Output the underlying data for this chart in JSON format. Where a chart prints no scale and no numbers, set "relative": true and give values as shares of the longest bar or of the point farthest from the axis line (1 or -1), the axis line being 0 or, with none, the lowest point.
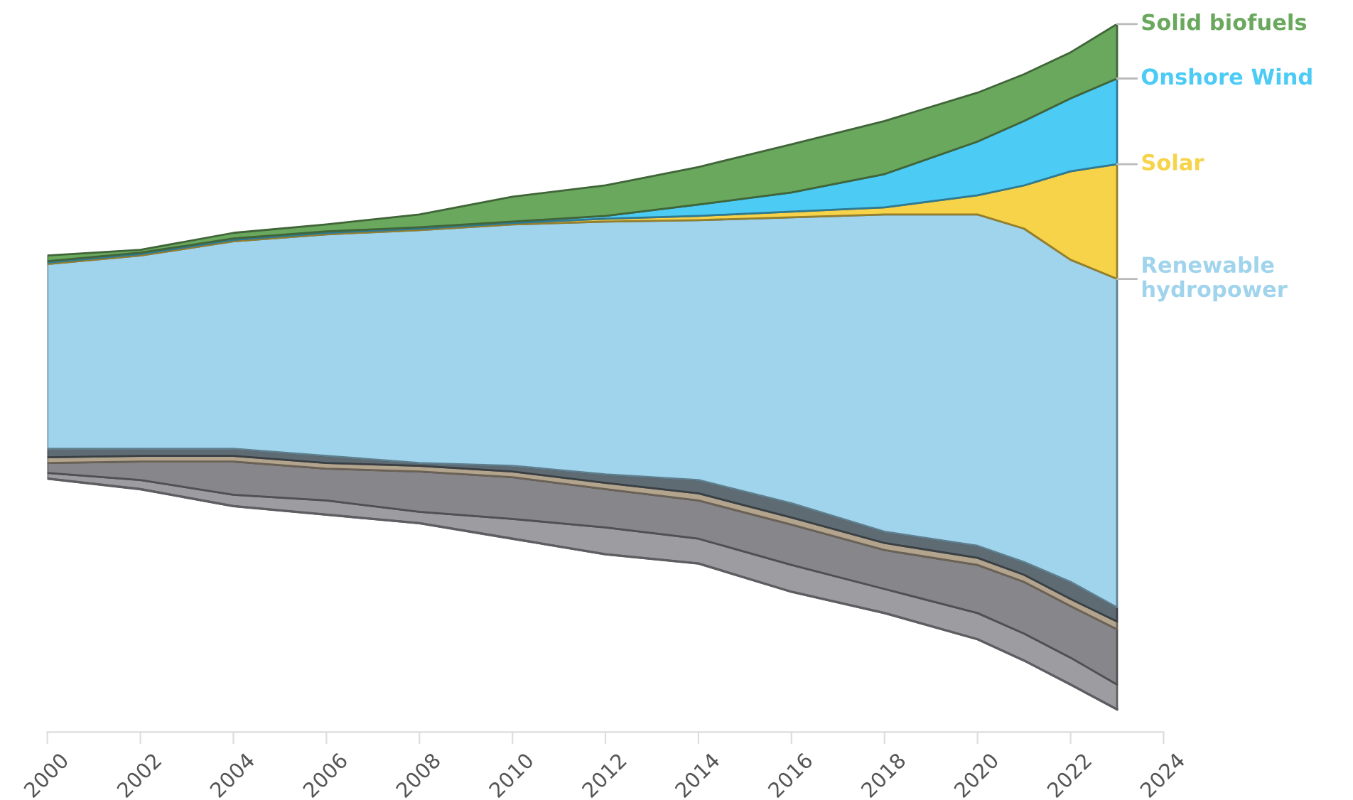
{
  "chart_data": {
    "type": "area",
    "relative": true,
    "tick_labels": "x",
    "grid": false,
    "legend": "right",
    "x": [
      2000,
      2002,
      2004,
      2006,
      2008,
      2010,
      2012,
      2014,
      2016,
      2018,
      2020,
      2021,
      2022,
      2023
    ],
    "xlim": [
      2000,
      2024
    ],
    "xticks": [
      2000,
      2002,
      2004,
      2006,
      2008,
      2010,
      2012,
      2014,
      2016,
      2018,
      2020,
      2022,
      2024
    ],
    "series": [
      {
        "type": "line",
        "color": "#5e5e62",
        "values": [
          0.358,
          0.343,
          0.319,
          0.307,
          0.295,
          0.273,
          0.251,
          0.238,
          0.198,
          0.168,
          0.131,
          0.101,
          0.067,
          0.032
        ]
      },
      {
        "color": "#9d9ca1",
        "values": [
          0.366,
          0.356,
          0.335,
          0.327,
          0.311,
          0.301,
          0.289,
          0.273,
          0.236,
          0.202,
          0.168,
          0.139,
          0.105,
          0.067
        ]
      },
      {
        "color": "#86868b",
        "values": [
          0.38,
          0.382,
          0.382,
          0.372,
          0.368,
          0.36,
          0.343,
          0.327,
          0.293,
          0.257,
          0.236,
          0.212,
          0.178,
          0.145
        ]
      },
      {
        "color": "#b3a48e",
        "values": [
          0.388,
          0.39,
          0.39,
          0.38,
          0.376,
          0.368,
          0.352,
          0.337,
          0.303,
          0.267,
          0.246,
          0.222,
          0.188,
          0.156
        ]
      },
      {
        "color": "#5f6b73",
        "values": [
          0.4,
          0.4,
          0.4,
          0.39,
          0.38,
          0.376,
          0.364,
          0.356,
          0.323,
          0.283,
          0.263,
          0.24,
          0.212,
          0.176
        ]
      },
      {
        "name": "Renewable\nhydropower",
        "color": "#a0d4ec",
        "values": [
          0.661,
          0.673,
          0.693,
          0.703,
          0.709,
          0.717,
          0.721,
          0.723,
          0.727,
          0.731,
          0.731,
          0.711,
          0.667,
          0.64
        ]
      },
      {
        "name": "Solar",
        "color": "#f7d34a",
        "values": [
          0.663,
          0.675,
          0.695,
          0.705,
          0.711,
          0.719,
          0.725,
          0.729,
          0.735,
          0.741,
          0.758,
          0.772,
          0.792,
          0.802
        ]
      },
      {
        "name": "Onshore Wind",
        "color": "#4ccbf5",
        "values": [
          0.665,
          0.677,
          0.697,
          0.707,
          0.713,
          0.721,
          0.729,
          0.745,
          0.762,
          0.788,
          0.834,
          0.863,
          0.895,
          0.923
        ]
      },
      {
        "name": "Solid biofuels",
        "color": "#6aa85e",
        "values": [
          0.673,
          0.681,
          0.705,
          0.717,
          0.731,
          0.756,
          0.772,
          0.798,
          0.83,
          0.863,
          0.903,
          0.929,
          0.96,
          1.0
        ]
      }
    ]
  }
}
